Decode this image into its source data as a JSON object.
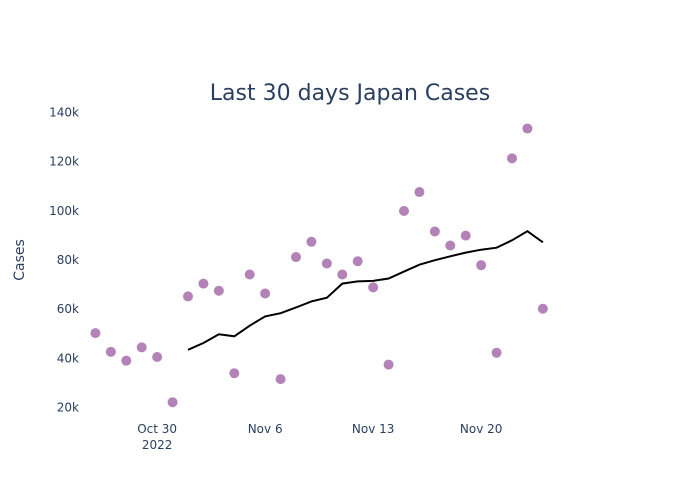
{
  "chart_data": {
    "type": "scatter",
    "title": "Last 30 days Japan Cases",
    "xlabel": "",
    "ylabel": "Cases",
    "x_ticks": [
      {
        "date": "2022-10-30",
        "label": "Oct 30",
        "sublabel": "2022"
      },
      {
        "date": "2022-11-06",
        "label": "Nov 6",
        "sublabel": ""
      },
      {
        "date": "2022-11-13",
        "label": "Nov 13",
        "sublabel": ""
      },
      {
        "date": "2022-11-20",
        "label": "Nov 20",
        "sublabel": ""
      }
    ],
    "y_ticks": [
      {
        "value": 20000,
        "label": "20k"
      },
      {
        "value": 40000,
        "label": "40k"
      },
      {
        "value": 60000,
        "label": "60k"
      },
      {
        "value": 80000,
        "label": "80k"
      },
      {
        "value": 100000,
        "label": "100k"
      },
      {
        "value": 120000,
        "label": "120k"
      },
      {
        "value": 140000,
        "label": "140k"
      }
    ],
    "xlim": [
      "2022-10-25",
      "2022-11-29"
    ],
    "ylim": [
      15000,
      145000
    ],
    "grid": false,
    "series": [
      {
        "mode": "markers",
        "color": "#b383b8",
        "points": [
          {
            "x": "2022-10-26",
            "y": 50300
          },
          {
            "x": "2022-10-27",
            "y": 42700
          },
          {
            "x": "2022-10-28",
            "y": 39100
          },
          {
            "x": "2022-10-29",
            "y": 44500
          },
          {
            "x": "2022-10-30",
            "y": 40600
          },
          {
            "x": "2022-10-31",
            "y": 22200
          },
          {
            "x": "2022-11-01",
            "y": 65200
          },
          {
            "x": "2022-11-02",
            "y": 70400
          },
          {
            "x": "2022-11-03",
            "y": 67500
          },
          {
            "x": "2022-11-04",
            "y": 34000
          },
          {
            "x": "2022-11-05",
            "y": 74100
          },
          {
            "x": "2022-11-06",
            "y": 66400
          },
          {
            "x": "2022-11-07",
            "y": 31600
          },
          {
            "x": "2022-11-08",
            "y": 81200
          },
          {
            "x": "2022-11-09",
            "y": 87400
          },
          {
            "x": "2022-11-10",
            "y": 78600
          },
          {
            "x": "2022-11-11",
            "y": 74100
          },
          {
            "x": "2022-11-12",
            "y": 79500
          },
          {
            "x": "2022-11-13",
            "y": 68900
          },
          {
            "x": "2022-11-14",
            "y": 37500
          },
          {
            "x": "2022-11-15",
            "y": 99900
          },
          {
            "x": "2022-11-16",
            "y": 107600
          },
          {
            "x": "2022-11-17",
            "y": 91600
          },
          {
            "x": "2022-11-18",
            "y": 85900
          },
          {
            "x": "2022-11-19",
            "y": 89900
          },
          {
            "x": "2022-11-20",
            "y": 77900
          },
          {
            "x": "2022-11-21",
            "y": 42300
          },
          {
            "x": "2022-11-22",
            "y": 121300
          },
          {
            "x": "2022-11-23",
            "y": 133400
          },
          {
            "x": "2022-11-24",
            "y": 60200
          }
        ]
      },
      {
        "mode": "lines",
        "color": "#000000",
        "points": [
          {
            "x": "2022-11-01",
            "y": 43500
          },
          {
            "x": "2022-11-02",
            "y": 46300
          },
          {
            "x": "2022-11-03",
            "y": 49800
          },
          {
            "x": "2022-11-04",
            "y": 49000
          },
          {
            "x": "2022-11-05",
            "y": 53300
          },
          {
            "x": "2022-11-06",
            "y": 57100
          },
          {
            "x": "2022-11-07",
            "y": 58400
          },
          {
            "x": "2022-11-08",
            "y": 60700
          },
          {
            "x": "2022-11-09",
            "y": 63200
          },
          {
            "x": "2022-11-10",
            "y": 64700
          },
          {
            "x": "2022-11-11",
            "y": 70400
          },
          {
            "x": "2022-11-12",
            "y": 71300
          },
          {
            "x": "2022-11-13",
            "y": 71500
          },
          {
            "x": "2022-11-14",
            "y": 72500
          },
          {
            "x": "2022-11-15",
            "y": 75300
          },
          {
            "x": "2022-11-16",
            "y": 78100
          },
          {
            "x": "2022-11-17",
            "y": 79900
          },
          {
            "x": "2022-11-18",
            "y": 81500
          },
          {
            "x": "2022-11-19",
            "y": 83000
          },
          {
            "x": "2022-11-20",
            "y": 84200
          },
          {
            "x": "2022-11-21",
            "y": 85000
          },
          {
            "x": "2022-11-22",
            "y": 88000
          },
          {
            "x": "2022-11-23",
            "y": 91700
          },
          {
            "x": "2022-11-24",
            "y": 87200
          }
        ]
      }
    ]
  }
}
